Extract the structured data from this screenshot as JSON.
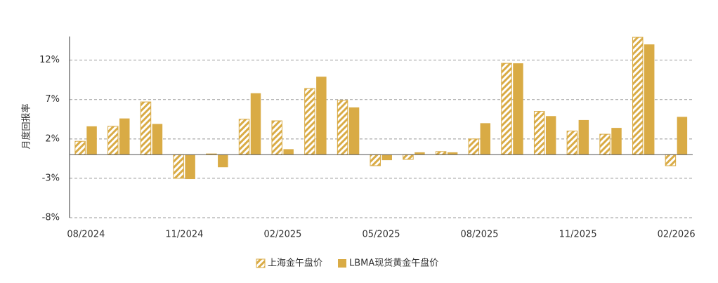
{
  "chart_data": {
    "type": "bar",
    "y_label": "月度回报率",
    "categories": [
      "08/2024",
      null,
      null,
      "11/2024",
      null,
      null,
      "02/2025",
      null,
      null,
      "05/2025",
      null,
      null,
      "08/2025",
      null,
      null,
      "11/2025",
      null,
      null,
      "02/2026"
    ],
    "series": [
      {
        "name": "上海金午盘价",
        "color": "#d9ab45",
        "hatched": true,
        "values": [
          1.7,
          3.6,
          6.7,
          -3.0,
          0.1,
          4.5,
          4.3,
          8.4,
          6.9,
          -1.4,
          -0.6,
          0.4,
          2.0,
          11.6,
          5.5,
          3.0,
          2.6,
          14.9,
          -1.4
        ]
      },
      {
        "name": "LBMA现货黄金午盘价",
        "color": "#d9ab45",
        "hatched": false,
        "values": [
          3.6,
          4.6,
          3.9,
          -3.1,
          -1.6,
          7.8,
          0.7,
          9.9,
          6.0,
          -0.7,
          0.3,
          0.3,
          4.0,
          11.6,
          4.9,
          4.4,
          3.4,
          14.0,
          4.8
        ]
      }
    ],
    "ylim": [
      -8,
      15
    ],
    "yticks": [
      {
        "value": -8,
        "label": "-8%"
      },
      {
        "value": -3,
        "label": "-3%"
      },
      {
        "value": 2,
        "label": "2%"
      },
      {
        "value": 7,
        "label": "7%"
      },
      {
        "value": 12,
        "label": "12%"
      }
    ],
    "grid": true,
    "legend": "bottom"
  }
}
